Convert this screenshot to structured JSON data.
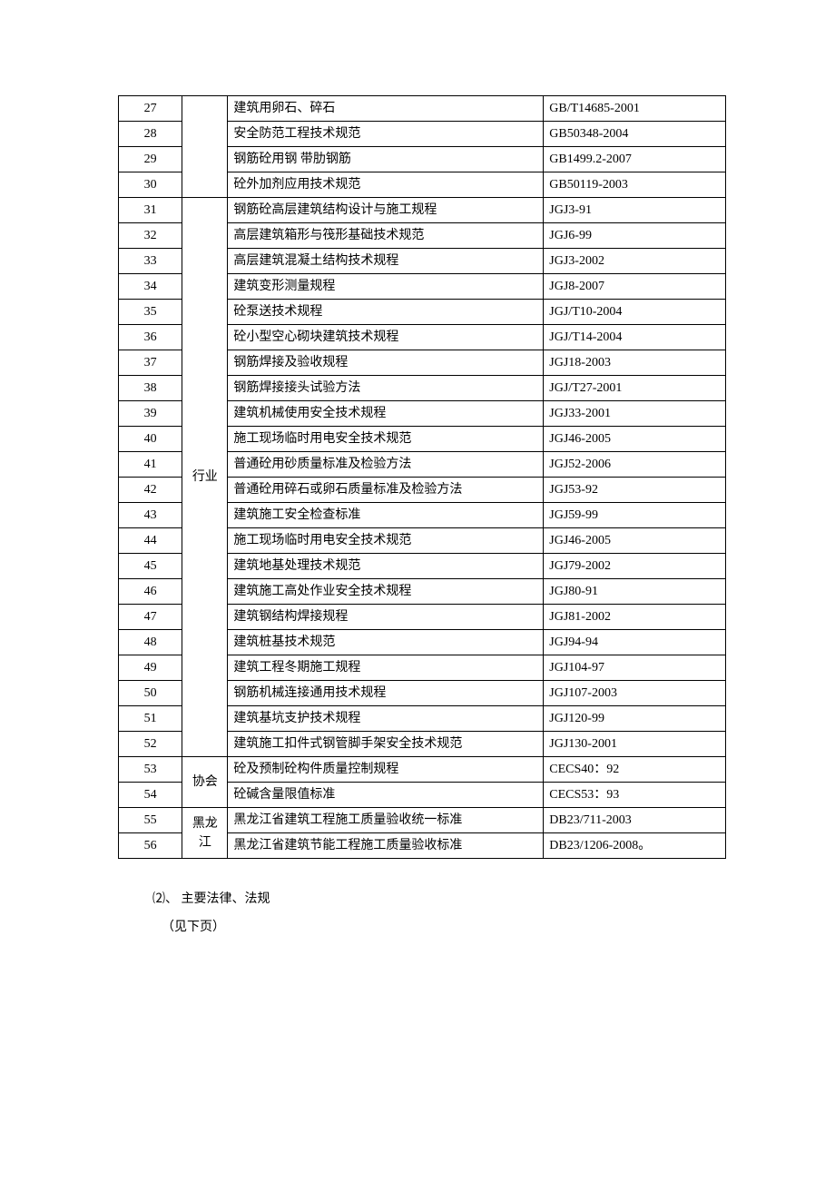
{
  "table": {
    "columns": {
      "num_width": "10.5%",
      "cat_width": "7.5%",
      "name_width": "52%",
      "code_width": "30%"
    },
    "groups": [
      {
        "category": "",
        "rowspan": 4,
        "rows": [
          {
            "num": "27",
            "name": "建筑用卵石、碎石",
            "code": "GB/T14685-2001"
          },
          {
            "num": "28",
            "name": "安全防范工程技术规范",
            "code": "GB50348-2004"
          },
          {
            "num": "29",
            "name": "钢筋砼用钢 带肋钢筋",
            "code": "GB1499.2-2007"
          },
          {
            "num": "30",
            "name": "砼外加剂应用技术规范",
            "code": "GB50119-2003"
          }
        ]
      },
      {
        "category": "行业",
        "rowspan": 22,
        "rows": [
          {
            "num": "31",
            "name": "钢筋砼高层建筑结构设计与施工规程",
            "code": "JGJ3-91"
          },
          {
            "num": "32",
            "name": "高层建筑箱形与筏形基础技术规范",
            "code": "JGJ6-99"
          },
          {
            "num": "33",
            "name": "高层建筑混凝土结构技术规程",
            "code": "JGJ3-2002"
          },
          {
            "num": "34",
            "name": "建筑变形测量规程",
            "code": "JGJ8-2007"
          },
          {
            "num": "35",
            "name": "砼泵送技术规程",
            "code": "JGJ/T10-2004"
          },
          {
            "num": "36",
            "name": "砼小型空心砌块建筑技术规程",
            "code": "JGJ/T14-2004"
          },
          {
            "num": "37",
            "name": "钢筋焊接及验收规程",
            "code": "JGJ18-2003"
          },
          {
            "num": "38",
            "name": "钢筋焊接接头试验方法",
            "code": "JGJ/T27-2001"
          },
          {
            "num": "39",
            "name": "建筑机械使用安全技术规程",
            "code": "JGJ33-2001"
          },
          {
            "num": "40",
            "name": "施工现场临时用电安全技术规范",
            "code": "JGJ46-2005"
          },
          {
            "num": "41",
            "name": "普通砼用砂质量标准及检验方法",
            "code": "JGJ52-2006"
          },
          {
            "num": "42",
            "name": "普通砼用碎石或卵石质量标准及检验方法",
            "code": "JGJ53-92"
          },
          {
            "num": "43",
            "name": "建筑施工安全检查标准",
            "code": "JGJ59-99"
          },
          {
            "num": "44",
            "name": "施工现场临时用电安全技术规范",
            "code": "JGJ46-2005"
          },
          {
            "num": "45",
            "name": "建筑地基处理技术规范",
            "code": "JGJ79-2002"
          },
          {
            "num": "46",
            "name": "建筑施工高处作业安全技术规程",
            "code": "JGJ80-91"
          },
          {
            "num": "47",
            "name": "建筑钢结构焊接规程",
            "code": "JGJ81-2002"
          },
          {
            "num": "48",
            "name": "建筑桩基技术规范",
            "code": "JGJ94-94"
          },
          {
            "num": "49",
            "name": "建筑工程冬期施工规程",
            "code": "JGJ104-97"
          },
          {
            "num": "50",
            "name": "钢筋机械连接通用技术规程",
            "code": "JGJ107-2003"
          },
          {
            "num": "51",
            "name": "建筑基坑支护技术规程",
            "code": "JGJ120-99"
          },
          {
            "num": "52",
            "name": "建筑施工扣件式钢管脚手架安全技术规范",
            "code": "JGJ130-2001"
          }
        ]
      },
      {
        "category": "协会",
        "rowspan": 2,
        "rows": [
          {
            "num": "53",
            "name": "砼及预制砼构件质量控制规程",
            "code": "CECS40：92"
          },
          {
            "num": "54",
            "name": "砼碱含量限值标准",
            "code": "CECS53：93"
          }
        ]
      },
      {
        "category": "黑龙江",
        "rowspan": 2,
        "rows": [
          {
            "num": "55",
            "name": "黑龙江省建筑工程施工质量验收统一标准",
            "code": "DB23/711-2003"
          },
          {
            "num": "56",
            "name": "黑龙江省建筑节能工程施工质量验收标准",
            "code": "DB23/1206-2008。"
          }
        ]
      }
    ]
  },
  "footer": {
    "line1": "⑵、 主要法律、法规",
    "line2": "（见下页）"
  },
  "colors": {
    "background": "#ffffff",
    "text": "#000000",
    "border": "#000000"
  },
  "typography": {
    "font_family": "SimSun",
    "font_size": 14
  }
}
